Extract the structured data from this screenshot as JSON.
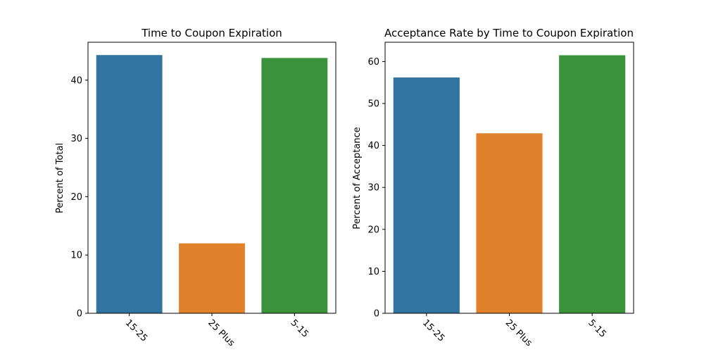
{
  "chart_data": [
    {
      "type": "bar",
      "title": "Time to Coupon Expiration",
      "xlabel": "",
      "ylabel": "Percent of Total",
      "categories": [
        "15-25",
        "25 Plus",
        "5-15"
      ],
      "values": [
        44.3,
        12.0,
        43.8
      ],
      "ylim": [
        0,
        46.5
      ],
      "yticks": [
        0,
        10,
        20,
        30,
        40
      ],
      "colors": [
        "#3274a1",
        "#e1812c",
        "#3a923a"
      ],
      "grid": false,
      "legend": "none"
    },
    {
      "type": "bar",
      "title": "Acceptance Rate by Time to Coupon Expiration",
      "xlabel": "",
      "ylabel": "Percent of Acceptance",
      "categories": [
        "15-25",
        "25 Plus",
        "5-15"
      ],
      "values": [
        56.2,
        42.9,
        61.5
      ],
      "ylim": [
        0,
        64.6
      ],
      "yticks": [
        0,
        10,
        20,
        30,
        40,
        50,
        60
      ],
      "colors": [
        "#3274a1",
        "#e1812c",
        "#3a923a"
      ],
      "grid": false,
      "legend": "none"
    }
  ]
}
